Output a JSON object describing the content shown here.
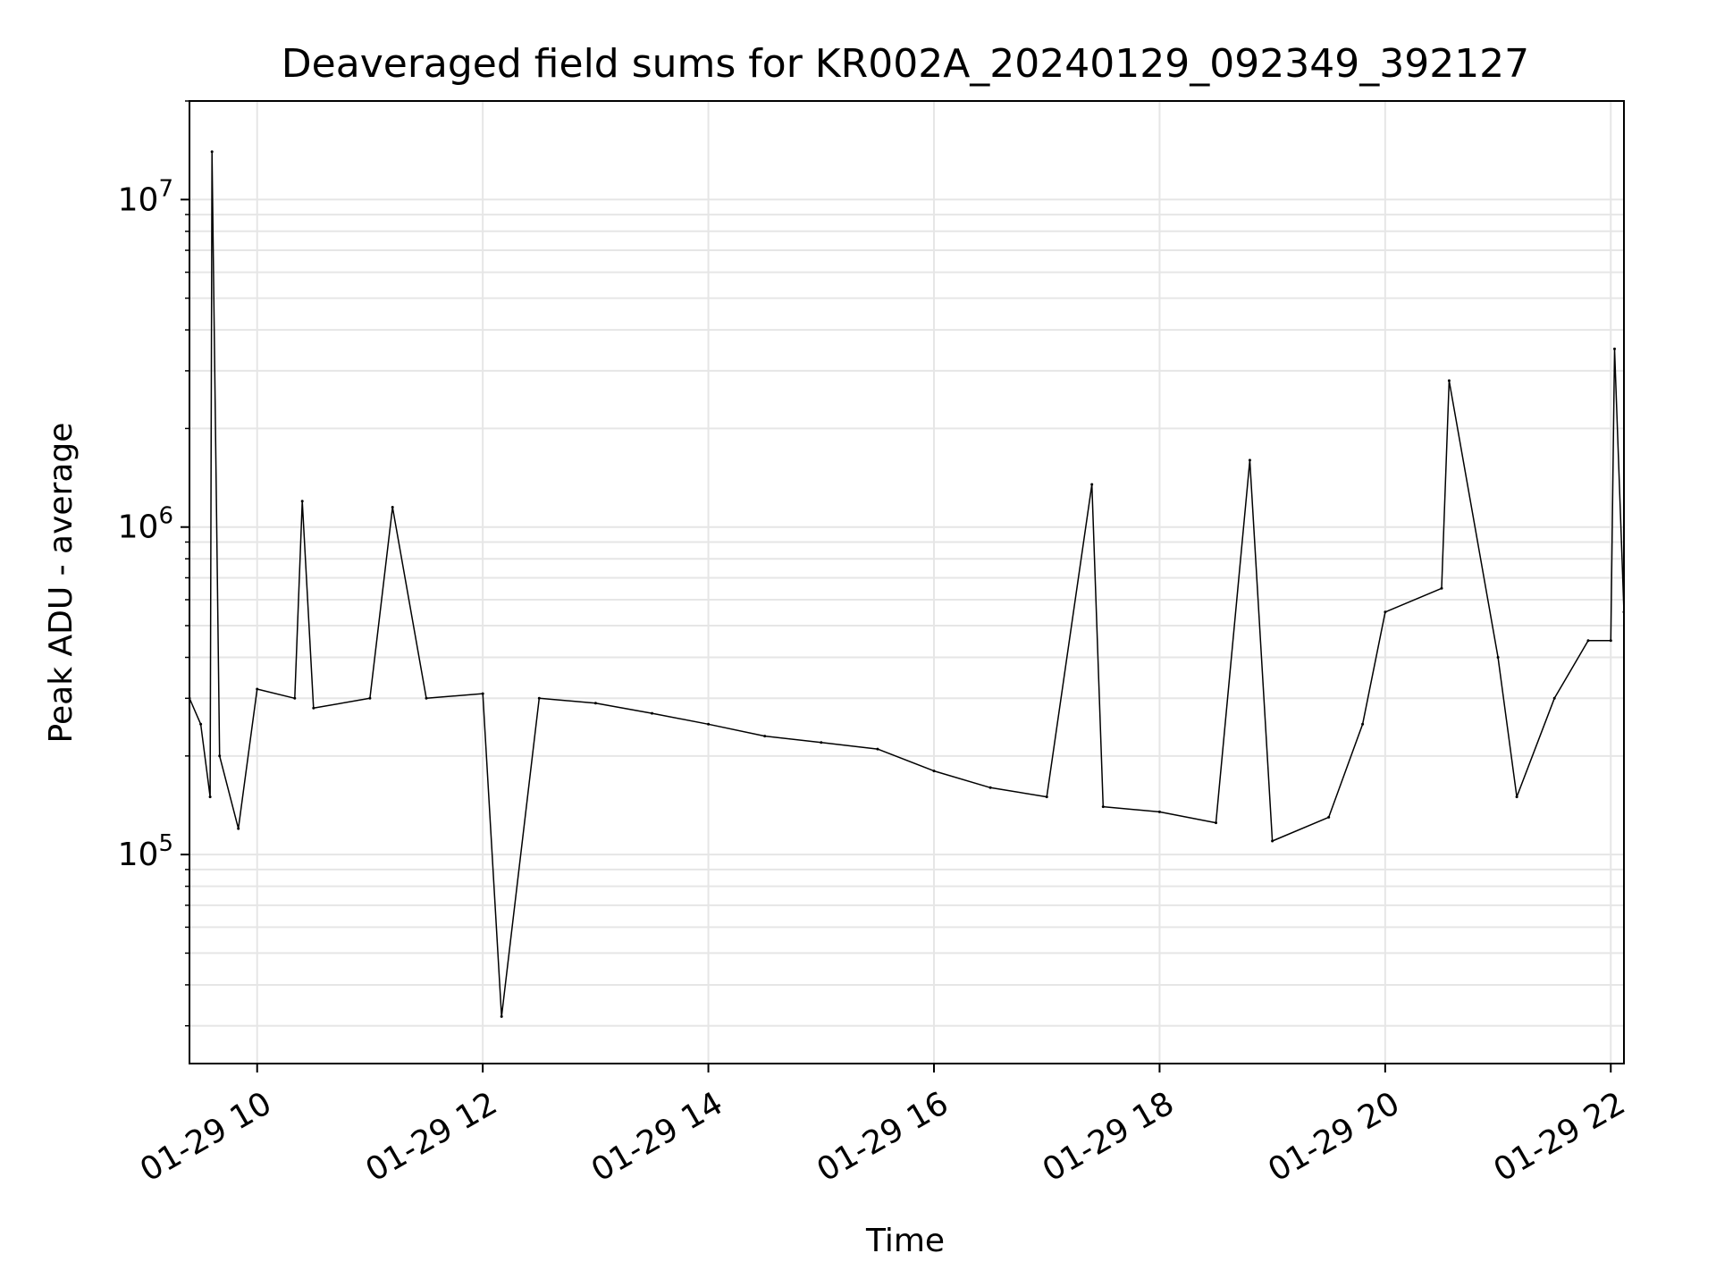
{
  "chart_data": {
    "type": "line",
    "title": "Deaveraged field sums for KR002A_20240129_092349_392127",
    "xlabel": "Time",
    "ylabel": "Peak ADU - average",
    "x_scale": "time",
    "y_scale": "log",
    "xlim": [
      "01-29 09:24",
      "01-29 22:07"
    ],
    "ylim": [
      23000,
      20000000
    ],
    "grid": true,
    "grid_color": "#e6e6e6",
    "line_color": "#000000",
    "x_ticks": [
      "01-29 10",
      "01-29 12",
      "01-29 14",
      "01-29 16",
      "01-29 18",
      "01-29 20",
      "01-29 22"
    ],
    "y_ticks": [
      {
        "base": "10",
        "exp": "5",
        "value": 100000
      },
      {
        "base": "10",
        "exp": "6",
        "value": 1000000
      },
      {
        "base": "10",
        "exp": "7",
        "value": 10000000
      }
    ],
    "series": [
      {
        "points": [
          {
            "x": "01-29 09:24",
            "y": 300000
          },
          {
            "x": "01-29 09:30",
            "y": 250000
          },
          {
            "x": "01-29 09:35",
            "y": 150000
          },
          {
            "x": "01-29 09:36",
            "y": 14000000
          },
          {
            "x": "01-29 09:40",
            "y": 200000
          },
          {
            "x": "01-29 09:50",
            "y": 120000
          },
          {
            "x": "01-29 10:00",
            "y": 320000
          },
          {
            "x": "01-29 10:20",
            "y": 300000
          },
          {
            "x": "01-29 10:24",
            "y": 1200000
          },
          {
            "x": "01-29 10:30",
            "y": 280000
          },
          {
            "x": "01-29 11:00",
            "y": 300000
          },
          {
            "x": "01-29 11:12",
            "y": 1150000
          },
          {
            "x": "01-29 11:30",
            "y": 300000
          },
          {
            "x": "01-29 12:00",
            "y": 310000
          },
          {
            "x": "01-29 12:10",
            "y": 32000
          },
          {
            "x": "01-29 12:30",
            "y": 300000
          },
          {
            "x": "01-29 13:00",
            "y": 290000
          },
          {
            "x": "01-29 13:30",
            "y": 270000
          },
          {
            "x": "01-29 14:00",
            "y": 250000
          },
          {
            "x": "01-29 14:30",
            "y": 230000
          },
          {
            "x": "01-29 15:00",
            "y": 220000
          },
          {
            "x": "01-29 15:30",
            "y": 210000
          },
          {
            "x": "01-29 16:00",
            "y": 180000
          },
          {
            "x": "01-29 16:30",
            "y": 160000
          },
          {
            "x": "01-29 17:00",
            "y": 150000
          },
          {
            "x": "01-29 17:24",
            "y": 1350000
          },
          {
            "x": "01-29 17:30",
            "y": 140000
          },
          {
            "x": "01-29 18:00",
            "y": 135000
          },
          {
            "x": "01-29 18:30",
            "y": 125000
          },
          {
            "x": "01-29 18:48",
            "y": 1600000
          },
          {
            "x": "01-29 19:00",
            "y": 110000
          },
          {
            "x": "01-29 19:30",
            "y": 130000
          },
          {
            "x": "01-29 19:48",
            "y": 250000
          },
          {
            "x": "01-29 20:00",
            "y": 550000
          },
          {
            "x": "01-29 20:30",
            "y": 650000
          },
          {
            "x": "01-29 20:34",
            "y": 2800000
          },
          {
            "x": "01-29 21:00",
            "y": 400000
          },
          {
            "x": "01-29 21:10",
            "y": 150000
          },
          {
            "x": "01-29 21:30",
            "y": 300000
          },
          {
            "x": "01-29 21:48",
            "y": 450000
          },
          {
            "x": "01-29 22:00",
            "y": 450000
          },
          {
            "x": "01-29 22:02",
            "y": 3500000
          },
          {
            "x": "01-29 22:07",
            "y": 550000
          }
        ]
      }
    ]
  }
}
